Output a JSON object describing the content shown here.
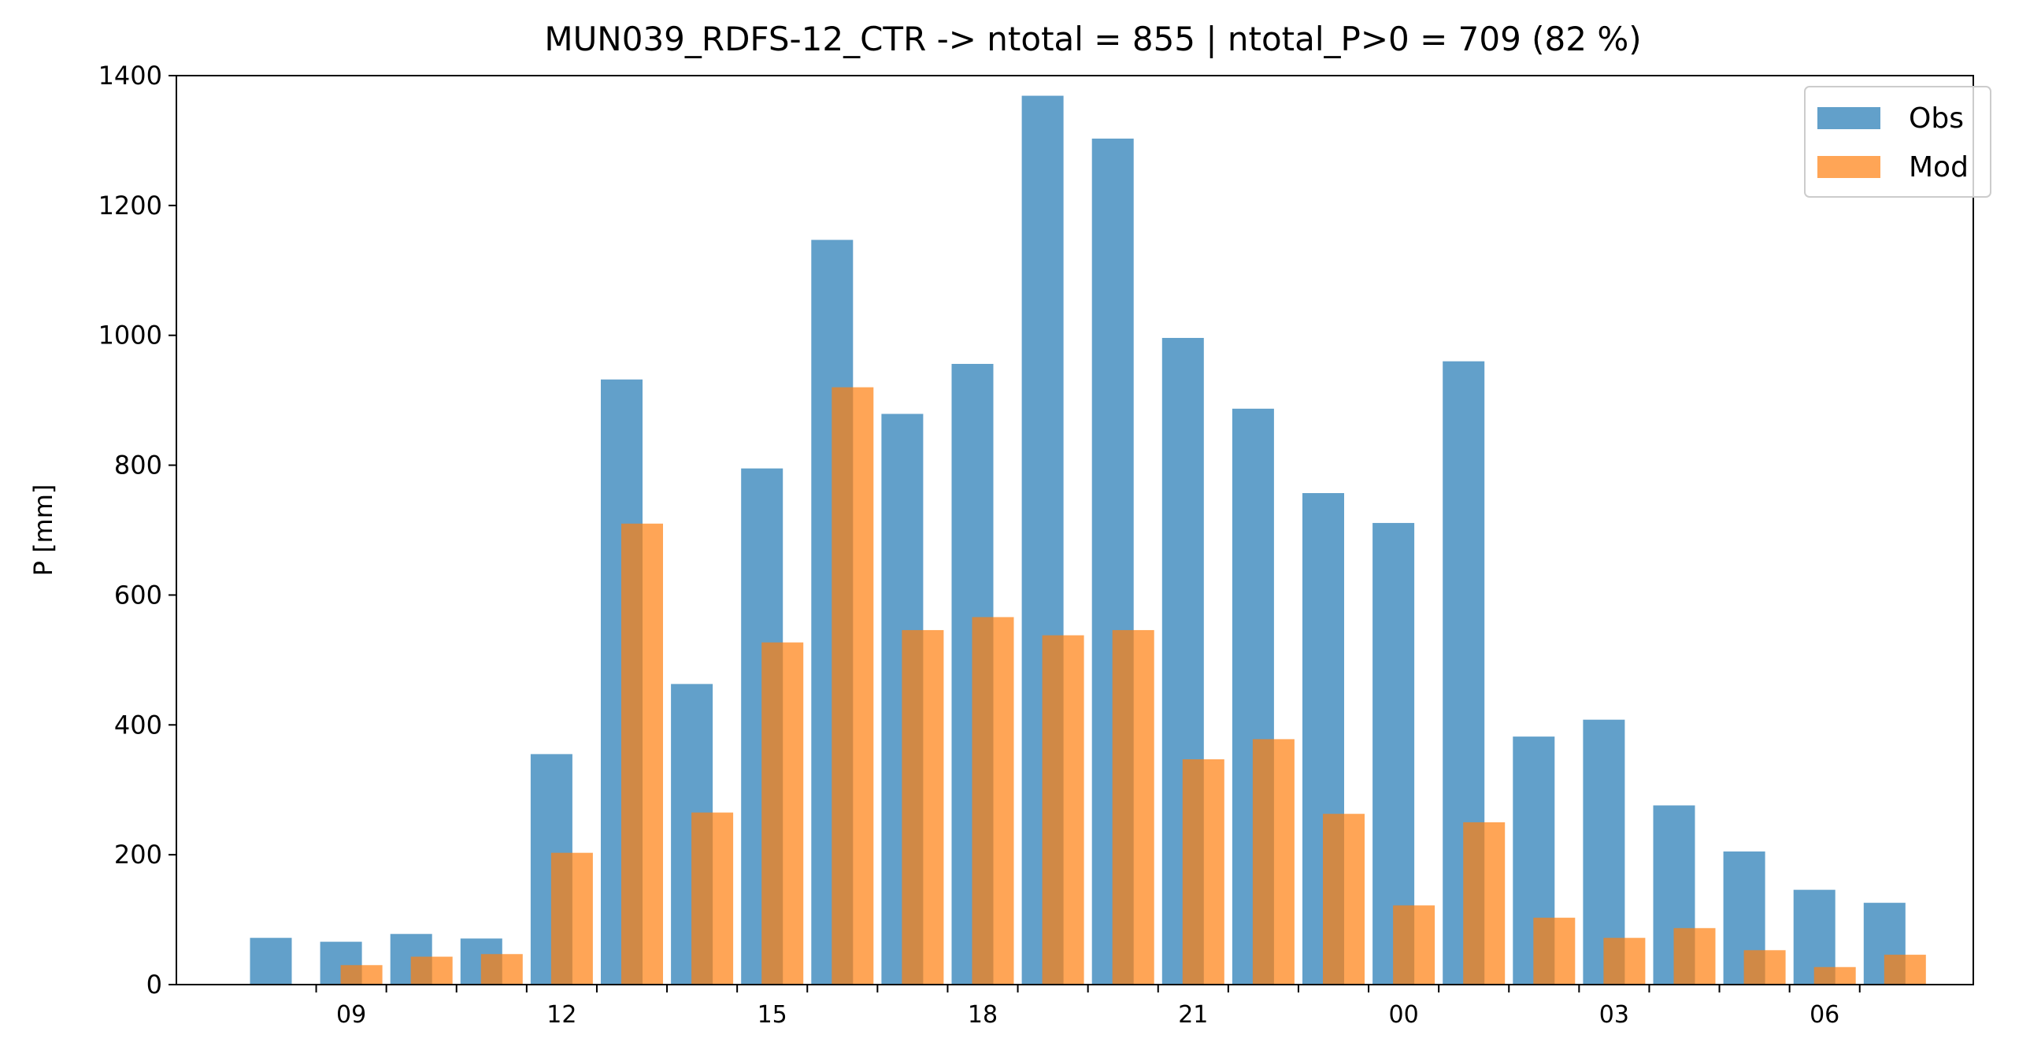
{
  "chart_data": {
    "type": "bar",
    "title": "MUN039_RDFS-12_CTR -> ntotal = 855 | ntotal_P>0 = 709 (82 %)",
    "xlabel": "",
    "ylabel": "P [mm]",
    "ylim": [
      0,
      1400
    ],
    "yticks": [
      0,
      200,
      400,
      600,
      800,
      1000,
      1200,
      1400
    ],
    "hours": [
      8,
      9,
      10,
      11,
      12,
      13,
      14,
      15,
      16,
      17,
      18,
      19,
      20,
      21,
      22,
      23,
      0,
      1,
      2,
      3,
      4,
      5,
      6,
      7
    ],
    "x_tick_labels": [
      "09",
      "12",
      "15",
      "18",
      "21",
      "00",
      "03",
      "06"
    ],
    "x_tick_label_hours": [
      9,
      12,
      15,
      18,
      21,
      0,
      3,
      6
    ],
    "legend_position": "upper right",
    "grid": false,
    "series": [
      {
        "name": "Obs",
        "color": "#1f77b4",
        "values": [
          72,
          66,
          78,
          71,
          355,
          932,
          463,
          795,
          1147,
          879,
          956,
          1369,
          1303,
          996,
          887,
          757,
          711,
          960,
          382,
          408,
          276,
          205,
          146,
          126
        ]
      },
      {
        "name": "Mod",
        "color": "#ff7f0e",
        "values": [
          0,
          30,
          43,
          47,
          203,
          710,
          265,
          527,
          920,
          546,
          566,
          538,
          546,
          347,
          378,
          263,
          122,
          250,
          103,
          72,
          87,
          53,
          27,
          46
        ]
      }
    ]
  }
}
